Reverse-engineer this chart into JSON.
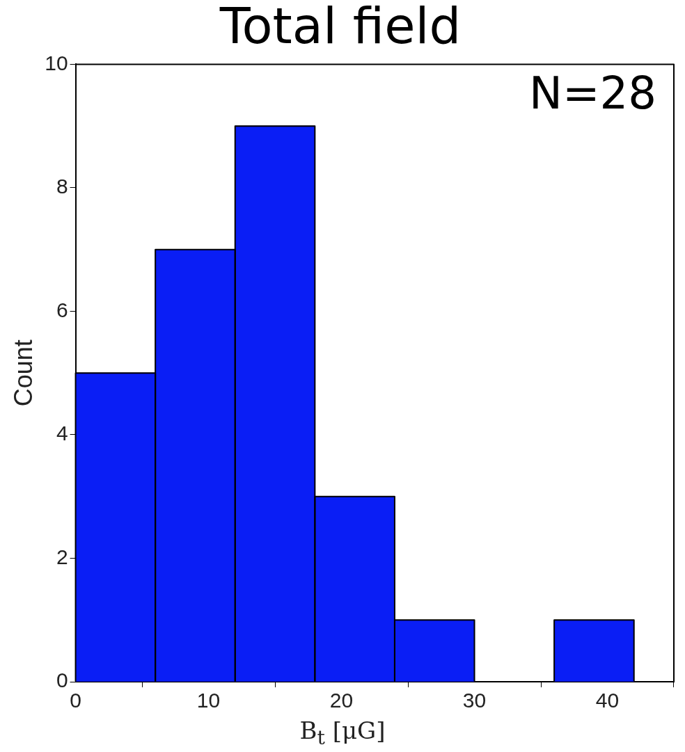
{
  "chart_data": {
    "type": "histogram",
    "title": "Total field",
    "xlabel": "B$_{t}$ [μG]",
    "ylabel": "Count",
    "annotations": [
      "N=28"
    ],
    "bins": [
      0,
      6,
      12,
      18,
      24,
      30,
      36,
      42
    ],
    "values": [
      5,
      7,
      9,
      3,
      1,
      0,
      1
    ],
    "color": "#0a1ef5",
    "xlim": [
      0,
      45
    ],
    "xticks": [
      0,
      10,
      20,
      30,
      40
    ],
    "ylim": [
      0,
      10
    ],
    "yticks": [
      0,
      2,
      4,
      6,
      8,
      10
    ],
    "grid": false,
    "legend": false
  }
}
